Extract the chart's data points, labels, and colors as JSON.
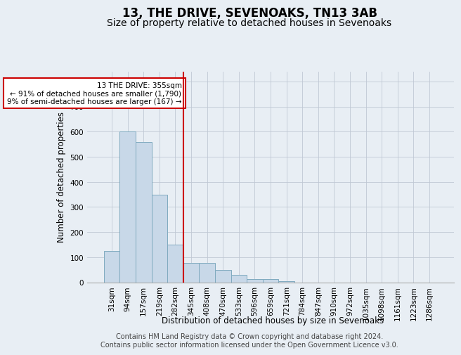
{
  "title": "13, THE DRIVE, SEVENOAKS, TN13 3AB",
  "subtitle": "Size of property relative to detached houses in Sevenoaks",
  "xlabel": "Distribution of detached houses by size in Sevenoaks",
  "ylabel": "Number of detached properties",
  "categories": [
    "31sqm",
    "94sqm",
    "157sqm",
    "219sqm",
    "282sqm",
    "345sqm",
    "408sqm",
    "470sqm",
    "533sqm",
    "596sqm",
    "659sqm",
    "721sqm",
    "784sqm",
    "847sqm",
    "910sqm",
    "972sqm",
    "1035sqm",
    "1098sqm",
    "1161sqm",
    "1223sqm",
    "1286sqm"
  ],
  "values": [
    125,
    600,
    560,
    348,
    150,
    78,
    78,
    50,
    30,
    14,
    13,
    5,
    0,
    0,
    0,
    0,
    0,
    0,
    0,
    0,
    0
  ],
  "bar_color": "#c8d8e8",
  "bar_edge_color": "#7faabf",
  "vline_x_index": 5,
  "vline_color": "#cc0000",
  "annotation_text": "13 THE DRIVE: 355sqm\n← 91% of detached houses are smaller (1,790)\n9% of semi-detached houses are larger (167) →",
  "annotation_box_color": "white",
  "annotation_box_edge_color": "#cc0000",
  "ylim": [
    0,
    840
  ],
  "yticks": [
    0,
    100,
    200,
    300,
    400,
    500,
    600,
    700,
    800
  ],
  "grid_color": "#c0c8d4",
  "bg_color": "#e8eef4",
  "footer_line1": "Contains HM Land Registry data © Crown copyright and database right 2024.",
  "footer_line2": "Contains public sector information licensed under the Open Government Licence v3.0.",
  "title_fontsize": 12,
  "subtitle_fontsize": 10,
  "axis_label_fontsize": 8.5,
  "tick_fontsize": 7.5,
  "footer_fontsize": 7
}
